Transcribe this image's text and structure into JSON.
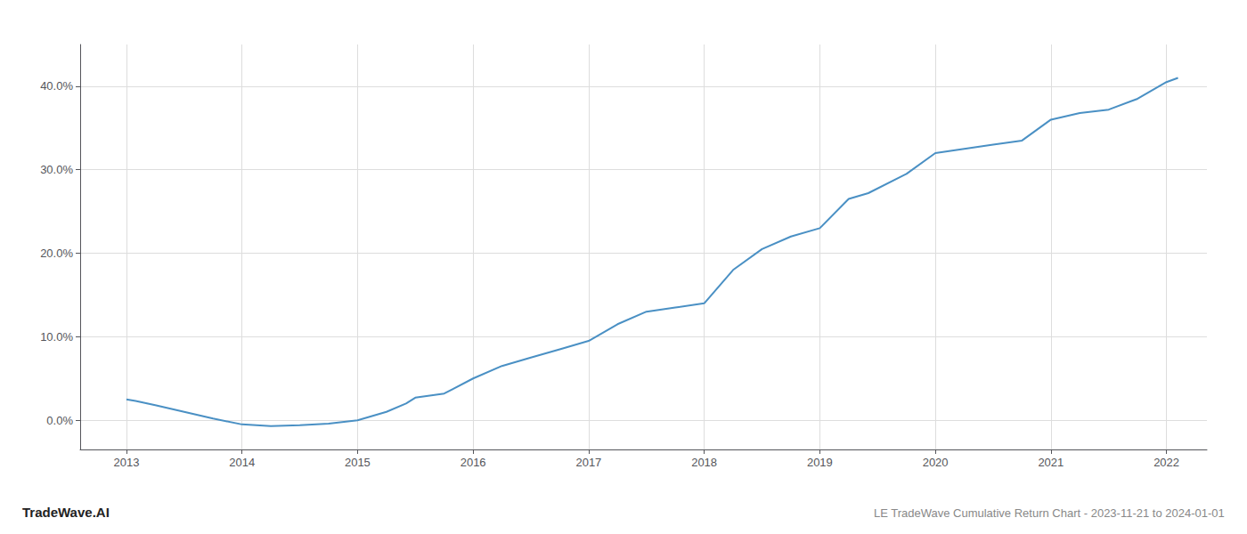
{
  "chart_data": {
    "type": "line",
    "title": "LE TradeWave Cumulative Return Chart - 2023-11-21 to 2024-01-01",
    "annotations": [
      "TradeWave.AI"
    ],
    "x": [
      2013.0,
      2013.08,
      2013.25,
      2013.5,
      2013.75,
      2014.0,
      2014.25,
      2014.5,
      2014.75,
      2015.0,
      2015.25,
      2015.42,
      2015.5,
      2015.75,
      2016.0,
      2016.25,
      2016.5,
      2016.75,
      2017.0,
      2017.25,
      2017.5,
      2017.75,
      2018.0,
      2018.25,
      2018.5,
      2018.75,
      2019.0,
      2019.25,
      2019.42,
      2019.75,
      2020.0,
      2020.25,
      2020.5,
      2020.75,
      2021.0,
      2021.25,
      2021.5,
      2021.75,
      2022.0,
      2022.1
    ],
    "values": [
      2.5,
      2.3,
      1.8,
      1.0,
      0.2,
      -0.5,
      -0.7,
      -0.6,
      -0.4,
      0.0,
      1.0,
      2.0,
      2.7,
      3.2,
      5.0,
      6.5,
      7.5,
      8.5,
      9.5,
      11.5,
      13.0,
      13.5,
      14.0,
      18.0,
      20.5,
      22.0,
      23.0,
      26.5,
      27.2,
      29.5,
      32.0,
      32.5,
      33.0,
      33.5,
      36.0,
      36.8,
      37.2,
      38.5,
      40.5,
      41.0
    ],
    "color": "#4a90c4",
    "xlim": [
      2012.6,
      2022.35
    ],
    "ylim": [
      -3.5,
      45.0
    ],
    "xticks": [
      2013,
      2014,
      2015,
      2016,
      2017,
      2018,
      2019,
      2020,
      2021,
      2022
    ],
    "yticks": [
      {
        "value": 0.0,
        "label": "0.0%"
      },
      {
        "value": 10.0,
        "label": "10.0%"
      },
      {
        "value": 20.0,
        "label": "20.0%"
      },
      {
        "value": 30.0,
        "label": "30.0%"
      },
      {
        "value": 40.0,
        "label": "40.0%"
      }
    ],
    "grid": true
  }
}
